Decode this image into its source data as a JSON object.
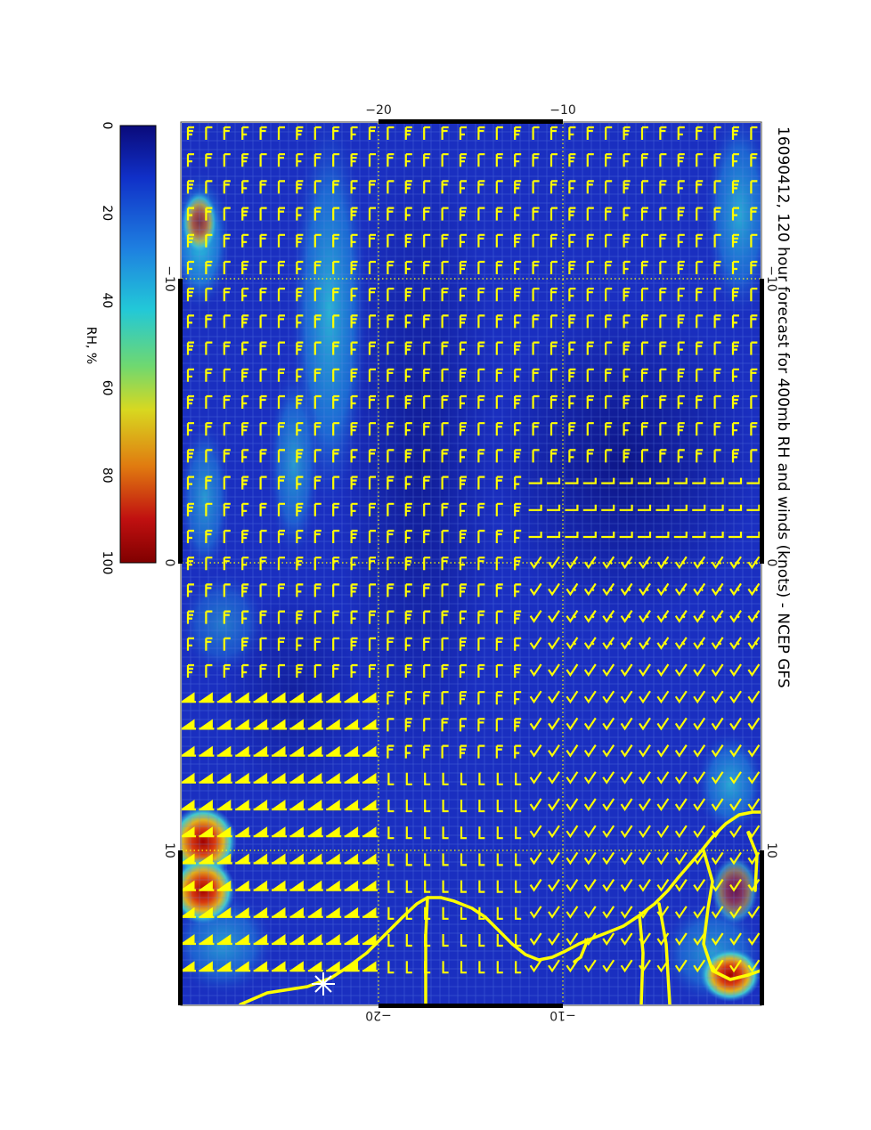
{
  "title": "16090412, 120 hour forecast for 400mb RH and winds (knots) - NCEP GFS",
  "colorbar": {
    "label": "RH, %",
    "ticks": [
      "0",
      "20",
      "40",
      "60",
      "80",
      "100"
    ],
    "colors": [
      "#0a0a7a",
      "#1030c8",
      "#1e7fe0",
      "#22c8d8",
      "#6fd870",
      "#d8d820",
      "#e07a10",
      "#c01010",
      "#800000"
    ]
  },
  "axes": {
    "top_ticks": [
      "−20",
      "−10"
    ],
    "bottom_ticks": [
      "−20",
      "−10"
    ],
    "left_ticks": [
      "−10",
      "0",
      "10"
    ],
    "right_ticks": [
      "−10",
      "0",
      "10"
    ]
  },
  "colors": {
    "barbs": "#ffff00",
    "coast": "#ffff00",
    "ocean_base": "#1a2fc0",
    "gridline": "#ffff00",
    "marker": "#ffffff"
  }
}
